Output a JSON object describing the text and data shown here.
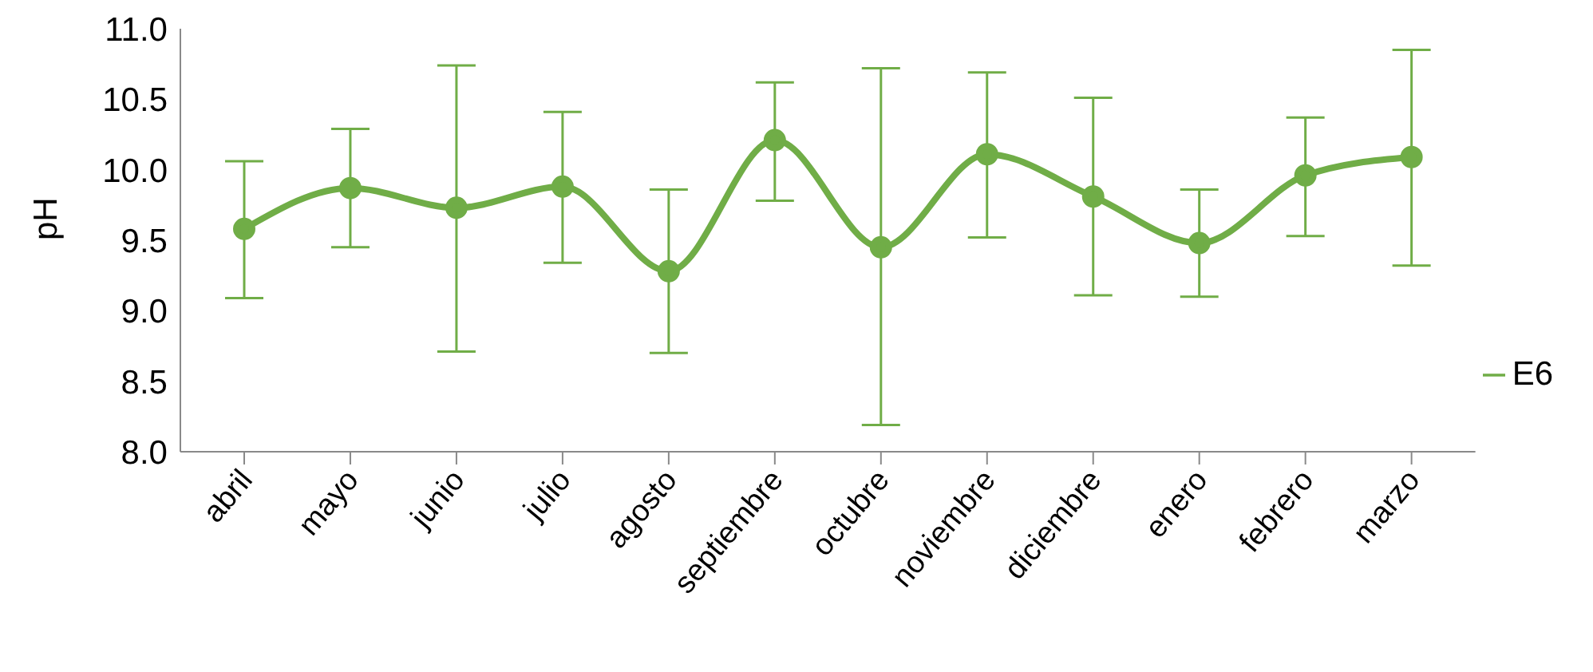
{
  "chart_data": {
    "type": "line",
    "ylabel": "pH",
    "categories": [
      "abril",
      "mayo",
      "junio",
      "julio",
      "agosto",
      "septiembre",
      "octubre",
      "noviembre",
      "diciembre",
      "enero",
      "febrero",
      "marzo"
    ],
    "series": [
      {
        "name": "E6",
        "color": "#70ad47",
        "values": [
          9.58,
          9.87,
          9.73,
          9.88,
          9.28,
          10.21,
          9.45,
          10.11,
          9.81,
          9.48,
          9.96,
          10.09
        ],
        "errors": [
          [
            9.09,
            10.06
          ],
          [
            9.45,
            10.29
          ],
          [
            8.71,
            10.74
          ],
          [
            9.34,
            10.41
          ],
          [
            8.7,
            9.86
          ],
          [
            9.78,
            10.62
          ],
          [
            8.19,
            10.72
          ],
          [
            9.52,
            10.69
          ],
          [
            9.11,
            10.51
          ],
          [
            9.1,
            9.86
          ],
          [
            9.53,
            10.37
          ],
          [
            9.32,
            10.85
          ]
        ]
      }
    ],
    "ylim": [
      8,
      11
    ],
    "yticks": [
      {
        "value": 8,
        "label": "8.0"
      },
      {
        "value": 8.5,
        "label": "8.5"
      },
      {
        "value": 9,
        "label": "9.0"
      },
      {
        "value": 9.5,
        "label": "9.5"
      },
      {
        "value": 10,
        "label": "10.0"
      },
      {
        "value": 10.5,
        "label": "10.5"
      },
      {
        "value": 11,
        "label": "11.0"
      }
    ],
    "grid": false,
    "legend": "right",
    "marker": "circle",
    "line_style": "solid"
  }
}
